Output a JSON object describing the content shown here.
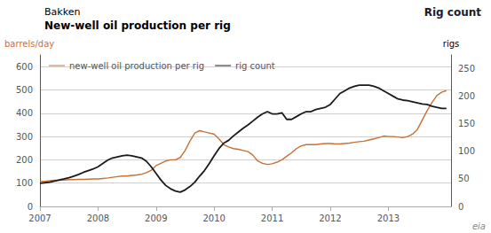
{
  "chart_data": {
    "type": "line",
    "subtitle": "Bakken",
    "title": "New-well oil production per rig",
    "ylabel": "barrels/day",
    "y2label": "rigs",
    "annotations": [
      "Rig count",
      "eia"
    ],
    "xlim": [
      2007.0,
      2014.08
    ],
    "xticks": [
      2007,
      2008,
      2009,
      2010,
      2011,
      2012,
      2013
    ],
    "ylim": [
      0,
      650
    ],
    "yticks": [
      0,
      100,
      200,
      300,
      400,
      500,
      600
    ],
    "y2lim": [
      0,
      275
    ],
    "y2ticks": [
      0,
      50,
      100,
      150,
      200,
      250
    ],
    "grid": true,
    "legend": "upper left",
    "x": [
      2007.0,
      2007.083,
      2007.167,
      2007.25,
      2007.333,
      2007.417,
      2007.5,
      2007.583,
      2007.667,
      2007.75,
      2007.833,
      2007.917,
      2008.0,
      2008.083,
      2008.167,
      2008.25,
      2008.333,
      2008.417,
      2008.5,
      2008.583,
      2008.667,
      2008.75,
      2008.833,
      2008.917,
      2009.0,
      2009.083,
      2009.167,
      2009.25,
      2009.333,
      2009.417,
      2009.5,
      2009.583,
      2009.667,
      2009.75,
      2009.833,
      2009.917,
      2010.0,
      2010.083,
      2010.167,
      2010.25,
      2010.333,
      2010.417,
      2010.5,
      2010.583,
      2010.667,
      2010.75,
      2010.833,
      2010.917,
      2011.0,
      2011.083,
      2011.167,
      2011.25,
      2011.333,
      2011.417,
      2011.5,
      2011.583,
      2011.667,
      2011.75,
      2011.833,
      2011.917,
      2012.0,
      2012.083,
      2012.167,
      2012.25,
      2012.333,
      2012.417,
      2012.5,
      2012.583,
      2012.667,
      2012.75,
      2012.833,
      2012.917,
      2013.0,
      2013.083,
      2013.167,
      2013.25,
      2013.333,
      2013.417,
      2013.5,
      2013.583,
      2013.667,
      2013.75,
      2013.833,
      2013.917,
      2014.0
    ],
    "series": [
      {
        "name": "new-well oil production per rig",
        "color": "#c87137",
        "axis": "y",
        "values": [
          108,
          108,
          110,
          112,
          112,
          113,
          115,
          115,
          116,
          116,
          117,
          118,
          118,
          120,
          122,
          125,
          128,
          130,
          130,
          133,
          135,
          138,
          145,
          155,
          175,
          185,
          195,
          200,
          200,
          210,
          240,
          280,
          315,
          325,
          320,
          315,
          310,
          290,
          265,
          255,
          248,
          245,
          240,
          235,
          220,
          195,
          185,
          180,
          183,
          190,
          200,
          215,
          230,
          248,
          260,
          265,
          265,
          265,
          268,
          270,
          270,
          268,
          268,
          270,
          272,
          275,
          278,
          280,
          285,
          290,
          295,
          302,
          300,
          300,
          298,
          295,
          300,
          310,
          330,
          370,
          410,
          445,
          475,
          490,
          497
        ]
      },
      {
        "name": "rig count",
        "color": "#1a1a1a",
        "axis": "y2",
        "values": [
          42,
          43,
          44,
          46,
          48,
          50,
          52,
          55,
          58,
          62,
          65,
          68,
          72,
          78,
          84,
          88,
          90,
          92,
          93,
          92,
          90,
          88,
          82,
          72,
          60,
          48,
          38,
          32,
          28,
          26,
          30,
          36,
          44,
          55,
          65,
          78,
          92,
          105,
          115,
          120,
          128,
          135,
          142,
          148,
          155,
          162,
          168,
          172,
          168,
          168,
          170,
          158,
          158,
          163,
          168,
          172,
          172,
          176,
          178,
          180,
          185,
          195,
          205,
          210,
          215,
          218,
          220,
          220,
          220,
          218,
          215,
          210,
          205,
          200,
          195,
          193,
          192,
          190,
          188,
          186,
          185,
          182,
          180,
          178,
          178
        ]
      }
    ]
  }
}
